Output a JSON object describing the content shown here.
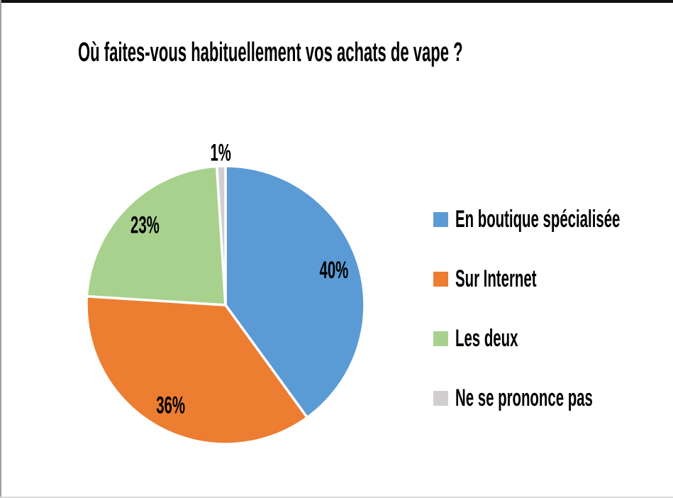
{
  "chart_data": {
    "type": "pie",
    "title": "Où faites-vous habituellement vos achats de vape ?",
    "slices": [
      {
        "label": "En boutique spécialisée",
        "value": 40,
        "display": "40%",
        "color": "#5B9BD5",
        "label_outside": false
      },
      {
        "label": "Sur Internet",
        "value": 36,
        "display": "36%",
        "color": "#ED7D31",
        "label_outside": false
      },
      {
        "label": "Les deux",
        "value": 23,
        "display": "23%",
        "color": "#A9D18E",
        "label_outside": false
      },
      {
        "label": "Ne se prononce pas",
        "value": 1,
        "display": "1%",
        "color": "#D0CECE",
        "label_outside": true
      }
    ],
    "data_labels": "percent",
    "legend_position": "right",
    "start_angle_deg": 0,
    "direction": "clockwise",
    "slice_border_color": "#FFFFFF",
    "label_color": "#000000"
  }
}
